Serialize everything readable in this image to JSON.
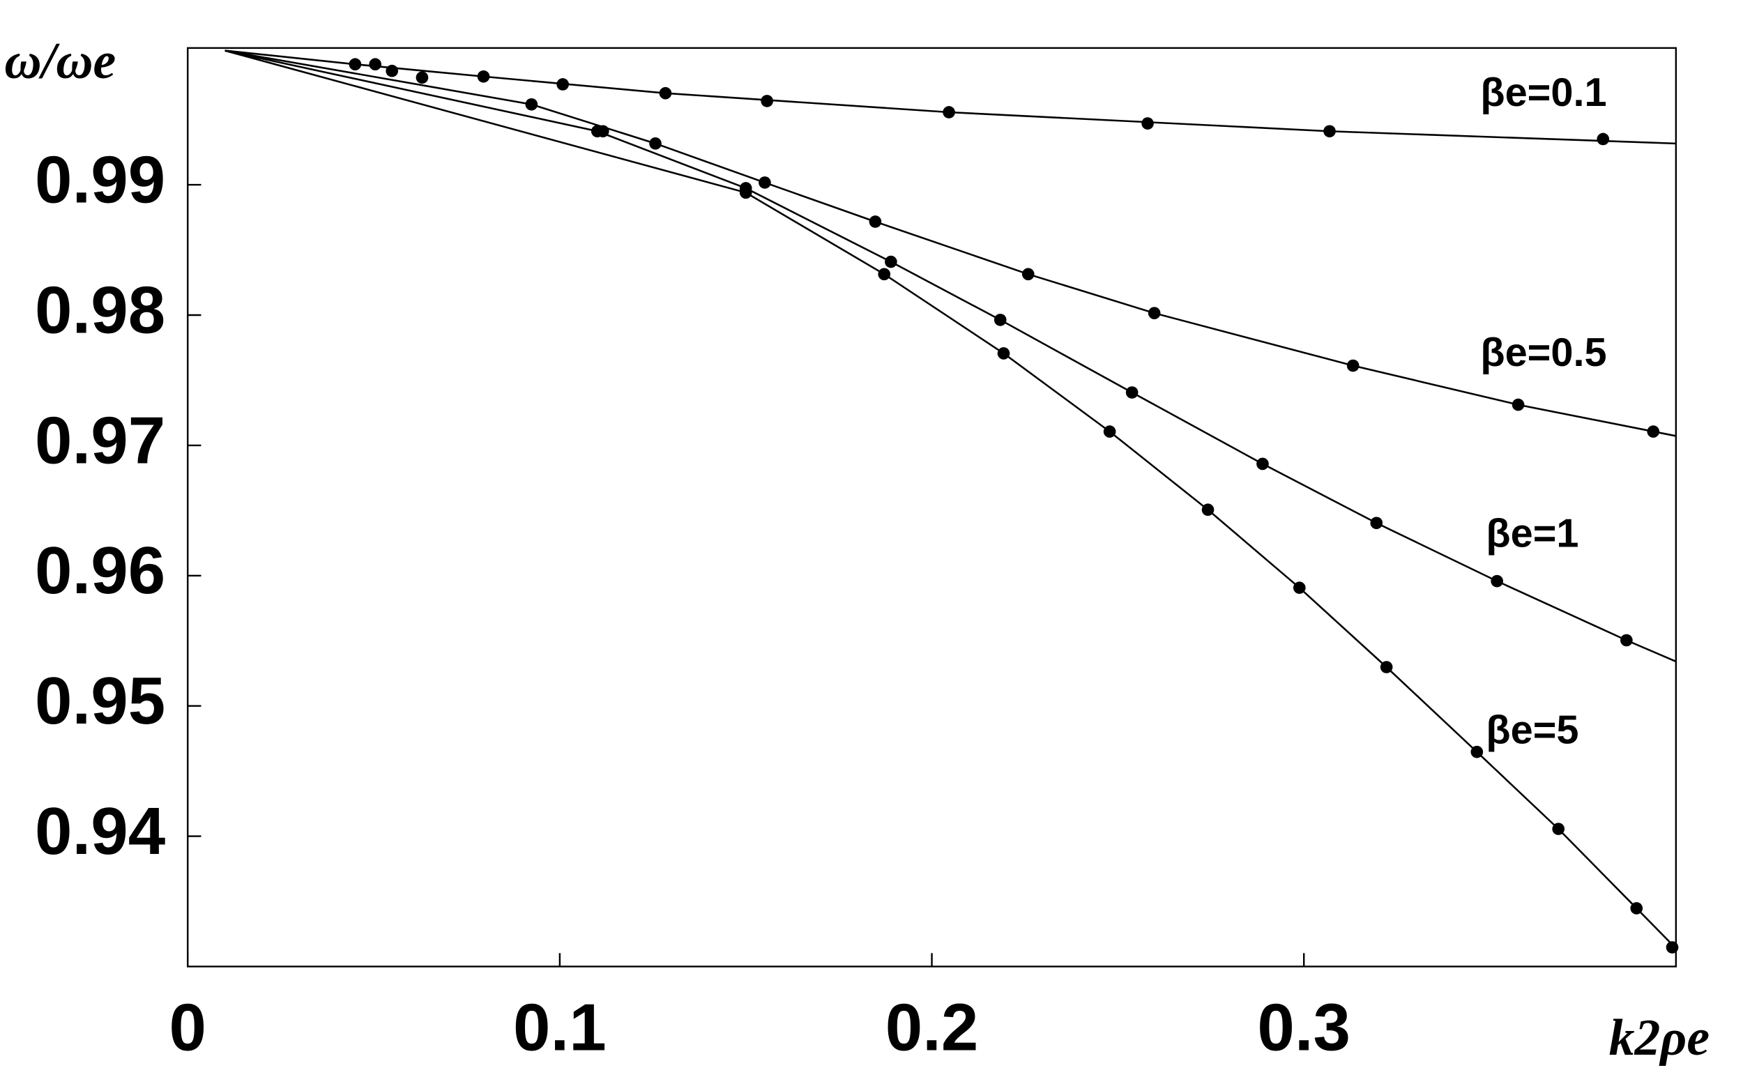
{
  "chart_data": {
    "type": "line",
    "y_label": "ω/ωe",
    "x_label": "k2ρe",
    "xlim": [
      0,
      0.4
    ],
    "ylim": [
      0.93,
      1.0005
    ],
    "xticks": [
      0,
      0.1,
      0.2,
      0.3
    ],
    "yticks": [
      0.99,
      0.98,
      0.97,
      0.96,
      0.95,
      0.94
    ],
    "color": "#000000",
    "series": [
      {
        "name": "βe=0.1",
        "curve_x": [
          0.01,
          0.045,
          0.0795,
          0.1284,
          0.2046,
          0.3069,
          0.4
        ],
        "curve_values": [
          1.0003,
          0.99925,
          0.99831,
          0.99703,
          0.99557,
          0.99411,
          0.99317
        ],
        "x": [
          0.045,
          0.0504,
          0.0549,
          0.063,
          0.0795,
          0.1008,
          0.1284,
          0.1557,
          0.2046,
          0.258,
          0.3069,
          0.3804
        ],
        "values": [
          0.99925,
          0.99925,
          0.99874,
          0.99823,
          0.99831,
          0.99771,
          0.99703,
          0.99643,
          0.99557,
          0.99471,
          0.99411,
          0.99351
        ]
      },
      {
        "name": "βe=0.5",
        "curve_x": [
          0.01,
          0.0924,
          0.1257,
          0.1551,
          0.1848,
          0.2259,
          0.2598,
          0.3132,
          0.3576,
          0.4
        ],
        "curve_values": [
          1.0003,
          0.99617,
          0.99317,
          0.99017,
          0.98717,
          0.98314,
          0.98015,
          0.97612,
          0.97312,
          0.97072
        ],
        "x": [
          0.0924,
          0.1116,
          0.1257,
          0.1551,
          0.1848,
          0.2259,
          0.2598,
          0.3132,
          0.3576,
          0.3939
        ],
        "values": [
          0.99617,
          0.99411,
          0.99317,
          0.99017,
          0.98717,
          0.98314,
          0.98015,
          0.97612,
          0.97312,
          0.97106
        ]
      },
      {
        "name": "βe=1",
        "curve_x": [
          0.01,
          0.1101,
          0.15,
          0.189,
          0.2184,
          0.2538,
          0.2889,
          0.3195,
          0.3519,
          0.3867,
          0.4
        ],
        "curve_values": [
          1.0003,
          0.99411,
          0.98974,
          0.98409,
          0.97963,
          0.97406,
          0.96858,
          0.96404,
          0.95958,
          0.95504,
          0.95341
        ],
        "x": [
          0.1101,
          0.15,
          0.189,
          0.2184,
          0.2538,
          0.2889,
          0.3195,
          0.3519,
          0.3867
        ],
        "values": [
          0.99411,
          0.98974,
          0.98409,
          0.97963,
          0.97406,
          0.96858,
          0.96404,
          0.95958,
          0.95504
        ]
      },
      {
        "name": "βe=5",
        "curve_x": [
          0.01,
          0.15,
          0.1872,
          0.2193,
          0.2478,
          0.2742,
          0.2988,
          0.3222,
          0.3465,
          0.3684,
          0.3894,
          0.4
        ],
        "curve_values": [
          1.0003,
          0.9894,
          0.98314,
          0.97706,
          0.97106,
          0.96506,
          0.95907,
          0.95298,
          0.94647,
          0.94056,
          0.93447,
          0.93139
        ],
        "x": [
          0.15,
          0.1872,
          0.2193,
          0.2478,
          0.2742,
          0.2988,
          0.3222,
          0.3465,
          0.3684,
          0.3894,
          0.399
        ],
        "values": [
          0.9894,
          0.98314,
          0.97706,
          0.97106,
          0.96506,
          0.95907,
          0.95298,
          0.94647,
          0.94056,
          0.93447,
          0.93147
        ]
      }
    ]
  }
}
